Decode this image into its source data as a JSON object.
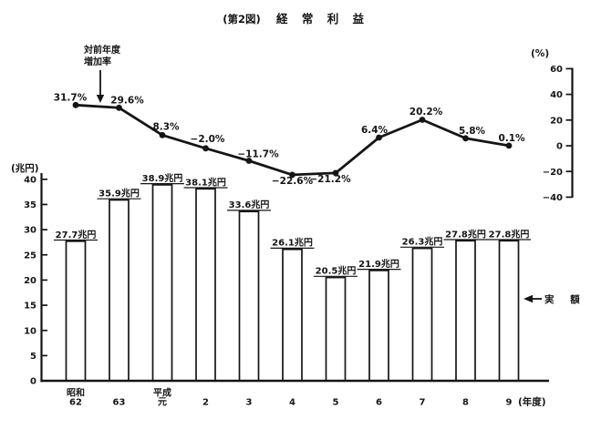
{
  "figure": {
    "title_prefix": "(第2図)",
    "title_main": "経 常 利 益",
    "title_full": "(第2図) 経常利益"
  },
  "annotations": {
    "line_series_label_line1": "対前年度",
    "line_series_label_line2": "増加率",
    "bar_series_label": "実 額"
  },
  "chart_data": {
    "type": "bar",
    "subtype": "bar-line-combo",
    "title": "(第2図) 経常利益",
    "categories": [
      "昭和62",
      "63",
      "平成元",
      "2",
      "3",
      "4",
      "5",
      "6",
      "7",
      "8",
      "9"
    ],
    "category_label_lines": [
      [
        "昭和",
        "62"
      ],
      [
        "63"
      ],
      [
        "平成",
        "元"
      ],
      [
        "2"
      ],
      [
        "3"
      ],
      [
        "4"
      ],
      [
        "5"
      ],
      [
        "6"
      ],
      [
        "7"
      ],
      [
        "8"
      ],
      [
        "9"
      ]
    ],
    "x_axis_suffix": "(年度)",
    "series": [
      {
        "name": "実額",
        "type": "bar",
        "unit": "兆円",
        "axis": "left",
        "values": [
          27.7,
          35.9,
          38.9,
          38.1,
          33.6,
          26.1,
          20.5,
          21.9,
          26.3,
          27.8,
          27.8
        ],
        "data_labels": [
          "27.7兆円",
          "35.9兆円",
          "38.9兆円",
          "38.1兆円",
          "33.6兆円",
          "26.1兆円",
          "20.5兆円",
          "21.9兆円",
          "26.3兆円",
          "27.8兆円",
          "27.8兆円"
        ]
      },
      {
        "name": "対前年度増加率",
        "type": "line",
        "unit": "%",
        "axis": "right",
        "values": [
          31.7,
          29.6,
          8.3,
          -2.0,
          -11.7,
          -22.6,
          -21.2,
          6.4,
          20.2,
          5.8,
          0.1
        ],
        "data_labels": [
          "31.7%",
          "29.6%",
          "8.3%",
          "−2.0%",
          "−11.7%",
          "−22.6%",
          "−21.2%",
          "6.4%",
          "20.2%",
          "5.8%",
          "0.1%"
        ],
        "label_offsets": [
          [
            -6,
            -5
          ],
          [
            9,
            -5
          ],
          [
            4,
            -6
          ],
          [
            2,
            -7
          ],
          [
            10,
            -4
          ],
          [
            0,
            10
          ],
          [
            -6,
            10
          ],
          [
            -5,
            -5
          ],
          [
            4,
            -5.5
          ],
          [
            7,
            -5
          ],
          [
            3,
            -5
          ]
        ]
      }
    ],
    "left_axis": {
      "label": "(兆円)",
      "tick_values": [
        0,
        5,
        10,
        15,
        20,
        25,
        30,
        35,
        40
      ],
      "tick_labels": [
        "0",
        "5",
        "10",
        "15",
        "20",
        "25",
        "30",
        "35",
        "40"
      ],
      "range": [
        0,
        40
      ]
    },
    "right_axis": {
      "label": "(%)",
      "tick_values": [
        60,
        40,
        20,
        0,
        -20,
        -40
      ],
      "tick_labels": [
        "60",
        "40",
        "20",
        "0",
        "−20",
        "−40"
      ],
      "range": [
        -40,
        60
      ]
    },
    "grid": false,
    "colors": {
      "ink": "#151515",
      "background": "#ffffff",
      "bar_fill": "#ffffff"
    }
  }
}
